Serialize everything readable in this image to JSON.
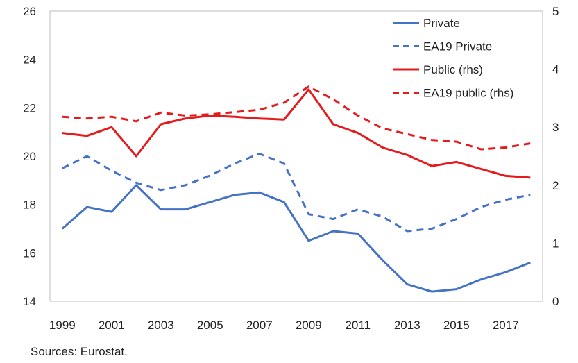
{
  "chart_data": {
    "type": "line",
    "x": [
      1999,
      2000,
      2001,
      2002,
      2003,
      2004,
      2005,
      2006,
      2007,
      2008,
      2009,
      2010,
      2011,
      2012,
      2013,
      2014,
      2015,
      2016,
      2017,
      2018
    ],
    "x_tick_labels": [
      "1999",
      "2001",
      "2003",
      "2005",
      "2007",
      "2009",
      "2011",
      "2013",
      "2015",
      "2017"
    ],
    "ylim_left": [
      14,
      26
    ],
    "y_ticks_left": [
      "14",
      "16",
      "18",
      "20",
      "22",
      "24",
      "26"
    ],
    "ylim_right": [
      0,
      5
    ],
    "y_ticks_right": [
      "0",
      "1",
      "2",
      "3",
      "4",
      "5"
    ],
    "legend_position": "top-right",
    "grid": false,
    "series": [
      {
        "name": "Private",
        "axis": "left",
        "style": "solid",
        "color": "#4472C4",
        "values": [
          17.0,
          17.9,
          17.7,
          18.8,
          17.8,
          17.8,
          18.1,
          18.4,
          18.5,
          18.1,
          16.5,
          16.9,
          16.8,
          15.7,
          14.7,
          14.4,
          14.5,
          14.9,
          15.2,
          15.6
        ]
      },
      {
        "name": "EA19 Private",
        "axis": "left",
        "style": "dashed",
        "color": "#4472C4",
        "values": [
          19.5,
          20.0,
          19.4,
          18.9,
          18.6,
          18.8,
          19.2,
          19.7,
          20.1,
          19.7,
          17.6,
          17.4,
          17.8,
          17.5,
          16.9,
          17.0,
          17.4,
          17.9,
          18.2,
          18.4
        ]
      },
      {
        "name": "Public (rhs)",
        "axis": "right",
        "style": "solid",
        "color": "#E41A1C",
        "values": [
          2.9,
          2.85,
          3.0,
          2.5,
          3.05,
          3.15,
          3.2,
          3.18,
          3.15,
          3.13,
          3.65,
          3.05,
          2.9,
          2.65,
          2.52,
          2.33,
          2.4,
          2.28,
          2.16,
          2.13
        ]
      },
      {
        "name": "EA19 public (rhs)",
        "axis": "right",
        "style": "dashed",
        "color": "#E41A1C",
        "values": [
          3.18,
          3.15,
          3.18,
          3.1,
          3.25,
          3.2,
          3.22,
          3.26,
          3.3,
          3.42,
          3.7,
          3.48,
          3.2,
          2.98,
          2.88,
          2.78,
          2.75,
          2.62,
          2.65,
          2.72
        ]
      }
    ]
  },
  "source_note": "Sources: Eurostat."
}
